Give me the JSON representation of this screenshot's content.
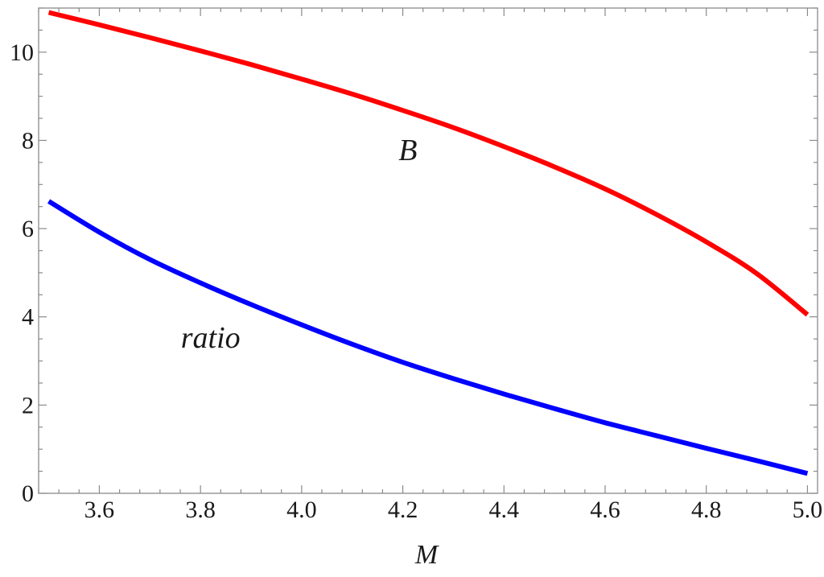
{
  "chart_data": {
    "type": "line",
    "xlabel": "M",
    "ylabel": "",
    "xlim": [
      3.48,
      5.02
    ],
    "ylim": [
      0,
      11
    ],
    "x_ticks_major": [
      3.6,
      3.8,
      4.0,
      4.2,
      4.4,
      4.6,
      4.8,
      5.0
    ],
    "x_tick_labels": [
      "3.6",
      "3.8",
      "4.0",
      "4.2",
      "4.4",
      "4.6",
      "4.8",
      "5.0"
    ],
    "y_ticks_major": [
      0,
      2,
      4,
      6,
      8,
      10
    ],
    "y_tick_labels": [
      "0",
      "2",
      "4",
      "6",
      "8",
      "10"
    ],
    "grid": false,
    "series": [
      {
        "name": "B",
        "color": "#ff0000",
        "x": [
          3.5,
          3.6,
          3.7,
          3.8,
          3.9,
          4.0,
          4.1,
          4.2,
          4.3,
          4.4,
          4.5,
          4.6,
          4.7,
          4.8,
          4.9,
          5.0
        ],
        "y": [
          10.9,
          10.62,
          10.33,
          10.03,
          9.72,
          9.39,
          9.05,
          8.68,
          8.29,
          7.86,
          7.4,
          6.9,
          6.33,
          5.7,
          4.98,
          4.05
        ]
      },
      {
        "name": "ratio",
        "color": "#0000ff",
        "x": [
          3.5,
          3.6,
          3.7,
          3.8,
          3.9,
          4.0,
          4.1,
          4.2,
          4.3,
          4.4,
          4.5,
          4.6,
          4.7,
          4.8,
          4.9,
          5.0
        ],
        "y": [
          6.62,
          5.92,
          5.3,
          4.77,
          4.28,
          3.82,
          3.38,
          2.97,
          2.6,
          2.25,
          1.92,
          1.6,
          1.31,
          1.02,
          0.74,
          0.45
        ]
      }
    ],
    "annotations": [
      {
        "text": "B",
        "x": 4.21,
        "y": 7.55
      },
      {
        "text": "ratio",
        "x": 3.82,
        "y": 3.3
      }
    ]
  }
}
